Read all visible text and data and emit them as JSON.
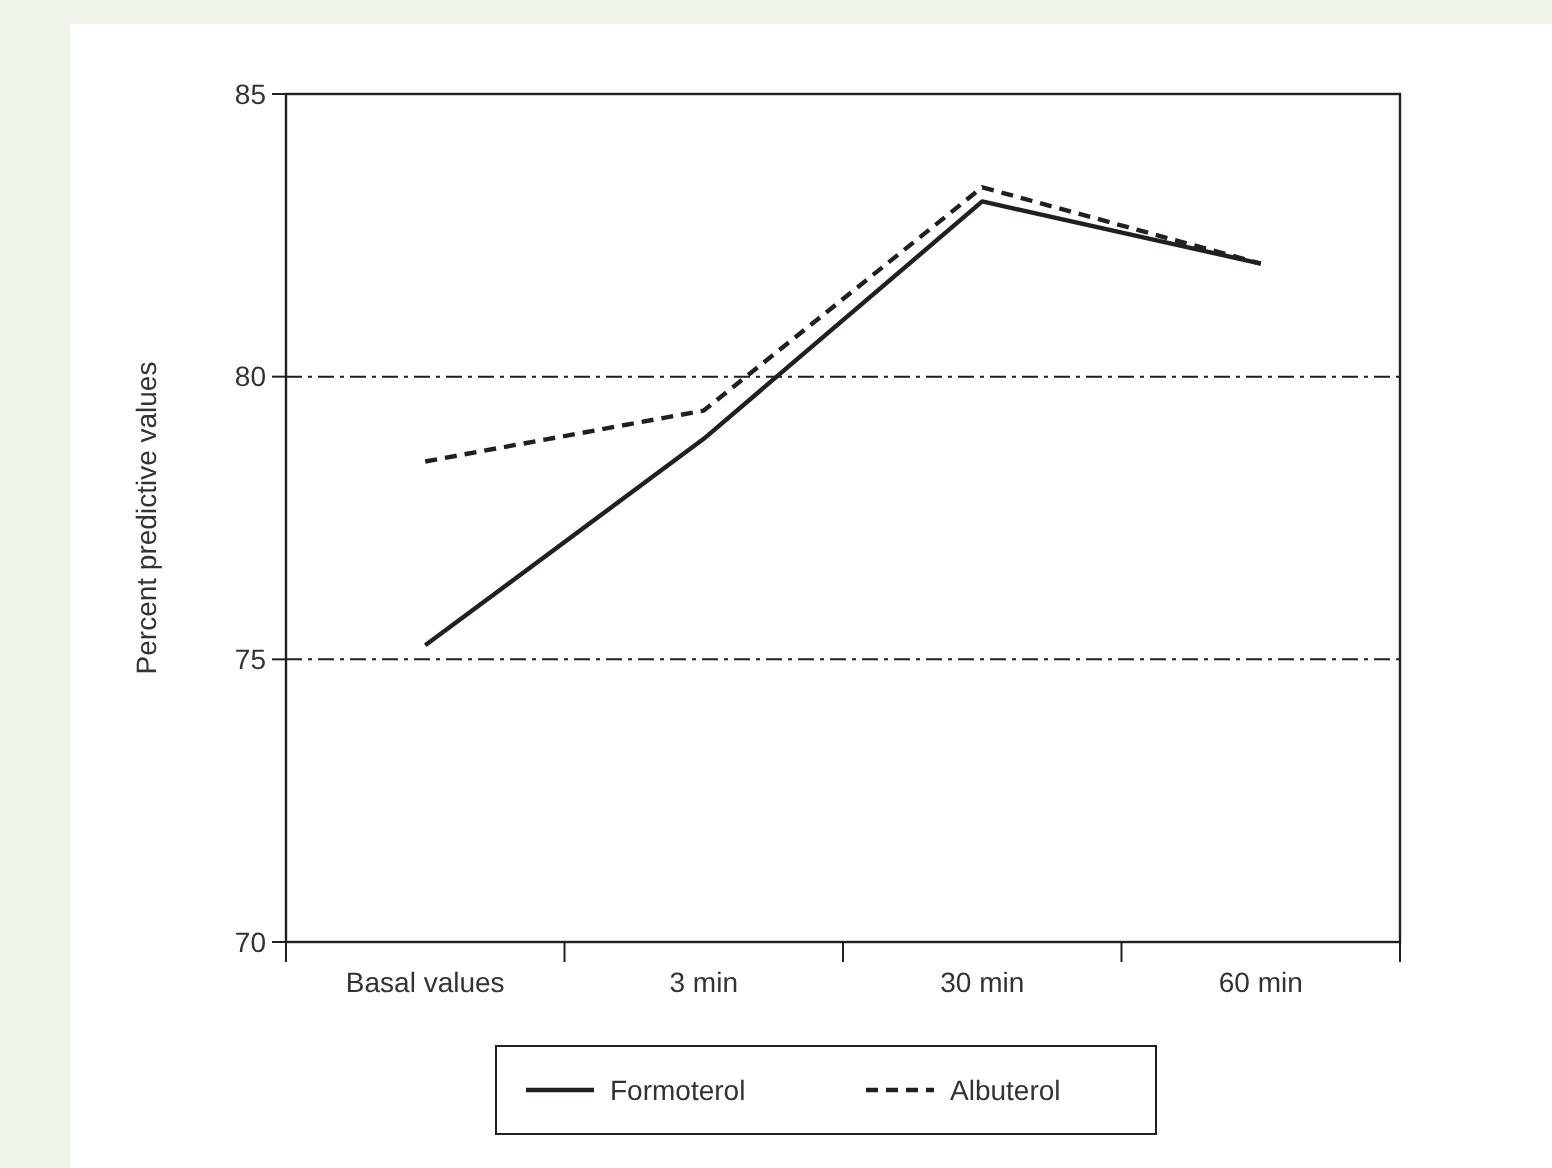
{
  "chart_data": {
    "type": "line",
    "ylabel": "Percent predictive values",
    "categories": [
      "Basal values",
      "3 min",
      "30 min",
      "60 min"
    ],
    "series": [
      {
        "name": "Formoterol",
        "color": "#231f20",
        "line_style": "solid",
        "values": [
          75.25,
          78.9,
          83.1,
          82.0
        ]
      },
      {
        "name": "Albuterol",
        "color": "#231f20",
        "line_style": "dashed",
        "values": [
          78.5,
          79.4,
          83.35,
          82.0
        ]
      }
    ],
    "ylim": [
      70,
      85
    ],
    "yticks": [
      70,
      75,
      80,
      85
    ],
    "ref_lines": [
      {
        "axis": "y",
        "value": 80,
        "line_style": "dashed",
        "color": "#231f20"
      },
      {
        "axis": "y",
        "value": 75,
        "line_style": "dashed",
        "color": "#231f20"
      }
    ],
    "legend": "bottom",
    "marker": "none"
  }
}
